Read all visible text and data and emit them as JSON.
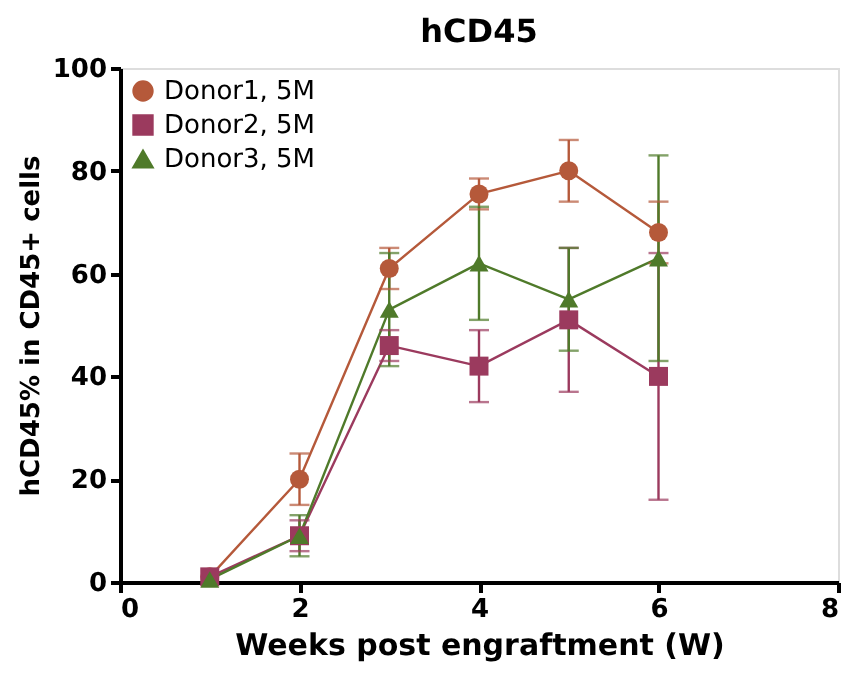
{
  "chart_data": {
    "type": "line",
    "title": "hCD45",
    "xlabel": "Weeks post engraftment (W)",
    "ylabel": "hCD45% in CD45+ cells",
    "x": [
      1,
      2,
      3,
      4,
      5,
      6
    ],
    "series": [
      {
        "name": "Donor1, 5M",
        "color": "#b5593a",
        "marker": "circle",
        "values": [
          1,
          20,
          61,
          75.5,
          80,
          68
        ],
        "errors": [
          null,
          5,
          4,
          3,
          6,
          6
        ]
      },
      {
        "name": "Donor2, 5M",
        "color": "#9b3a5e",
        "marker": "square",
        "values": [
          1,
          9,
          46,
          42,
          51,
          40
        ],
        "errors": [
          null,
          3,
          3,
          7,
          14,
          24
        ]
      },
      {
        "name": "Donor3, 5M",
        "color": "#4f7a2a",
        "marker": "triangle",
        "values": [
          0.5,
          9,
          53,
          62,
          55,
          63
        ],
        "errors": [
          null,
          4,
          11,
          11,
          10,
          20
        ]
      }
    ],
    "xlim": [
      0,
      8
    ],
    "xticks": [
      0,
      2,
      4,
      6,
      8
    ],
    "ylim": [
      0,
      100
    ],
    "yticks": [
      0,
      20,
      40,
      60,
      80,
      100
    ],
    "grid": false,
    "legend": "top left",
    "line_style": "solid"
  }
}
